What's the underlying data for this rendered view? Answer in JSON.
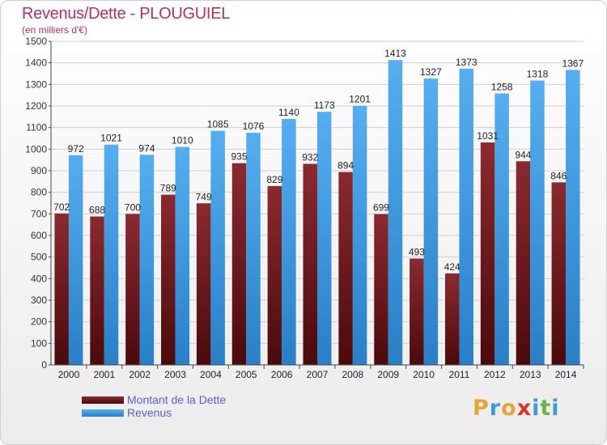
{
  "header": {
    "title": "Revenus/Dette - PLOUGUIEL",
    "subtitle": "(en milliers d'€)"
  },
  "colors": {
    "debt": "#7a1c24",
    "revenue": "#3d9ae6",
    "title": "#b0306a",
    "legend_text": "#5b5bd6"
  },
  "chart_data": {
    "type": "bar",
    "title": "Revenus/Dette - PLOUGUIEL",
    "subtitle": "(en milliers d'€)",
    "categories": [
      "2000",
      "2001",
      "2002",
      "2003",
      "2004",
      "2005",
      "2006",
      "2007",
      "2008",
      "2009",
      "2010",
      "2011",
      "2012",
      "2013",
      "2014"
    ],
    "series": [
      {
        "name": "Montant de la Dette",
        "values": [
          702,
          688,
          700,
          789,
          749,
          935,
          829,
          932,
          894,
          699,
          493,
          424,
          1031,
          944,
          846
        ]
      },
      {
        "name": "Revenus",
        "values": [
          972,
          1021,
          974,
          1010,
          1085,
          1076,
          1140,
          1173,
          1201,
          1413,
          1327,
          1373,
          1258,
          1318,
          1367
        ]
      }
    ],
    "data_labels": [
      [
        "702",
        "688",
        "700",
        "789",
        "749",
        "935",
        "829",
        "932",
        "894",
        "699",
        "493",
        "424",
        "1031",
        "944",
        "846"
      ],
      [
        "972",
        "1021",
        "974",
        "1010",
        "1085",
        "1076",
        "1140",
        "1173",
        "1201",
        "1413",
        "1327",
        "1373",
        "1258",
        "1318",
        "1367"
      ]
    ],
    "ylim": [
      0,
      1500
    ],
    "yticks": [
      0,
      100,
      200,
      300,
      400,
      500,
      600,
      700,
      800,
      900,
      1000,
      1100,
      1200,
      1300,
      1400,
      1500
    ],
    "grid": true,
    "legend_position": "bottom-left"
  },
  "legend": {
    "items": [
      {
        "label": "Montant de la Dette"
      },
      {
        "label": "Revenus"
      }
    ]
  },
  "logo": {
    "letters": [
      "P",
      "r",
      "o",
      "x",
      "i",
      "t",
      "i"
    ],
    "colors": [
      "#e8a33a",
      "#3c9ad6",
      "#e8a33a",
      "#d9342b",
      "#3c9ad6",
      "#6bb54a",
      "#3c9ad6"
    ]
  }
}
